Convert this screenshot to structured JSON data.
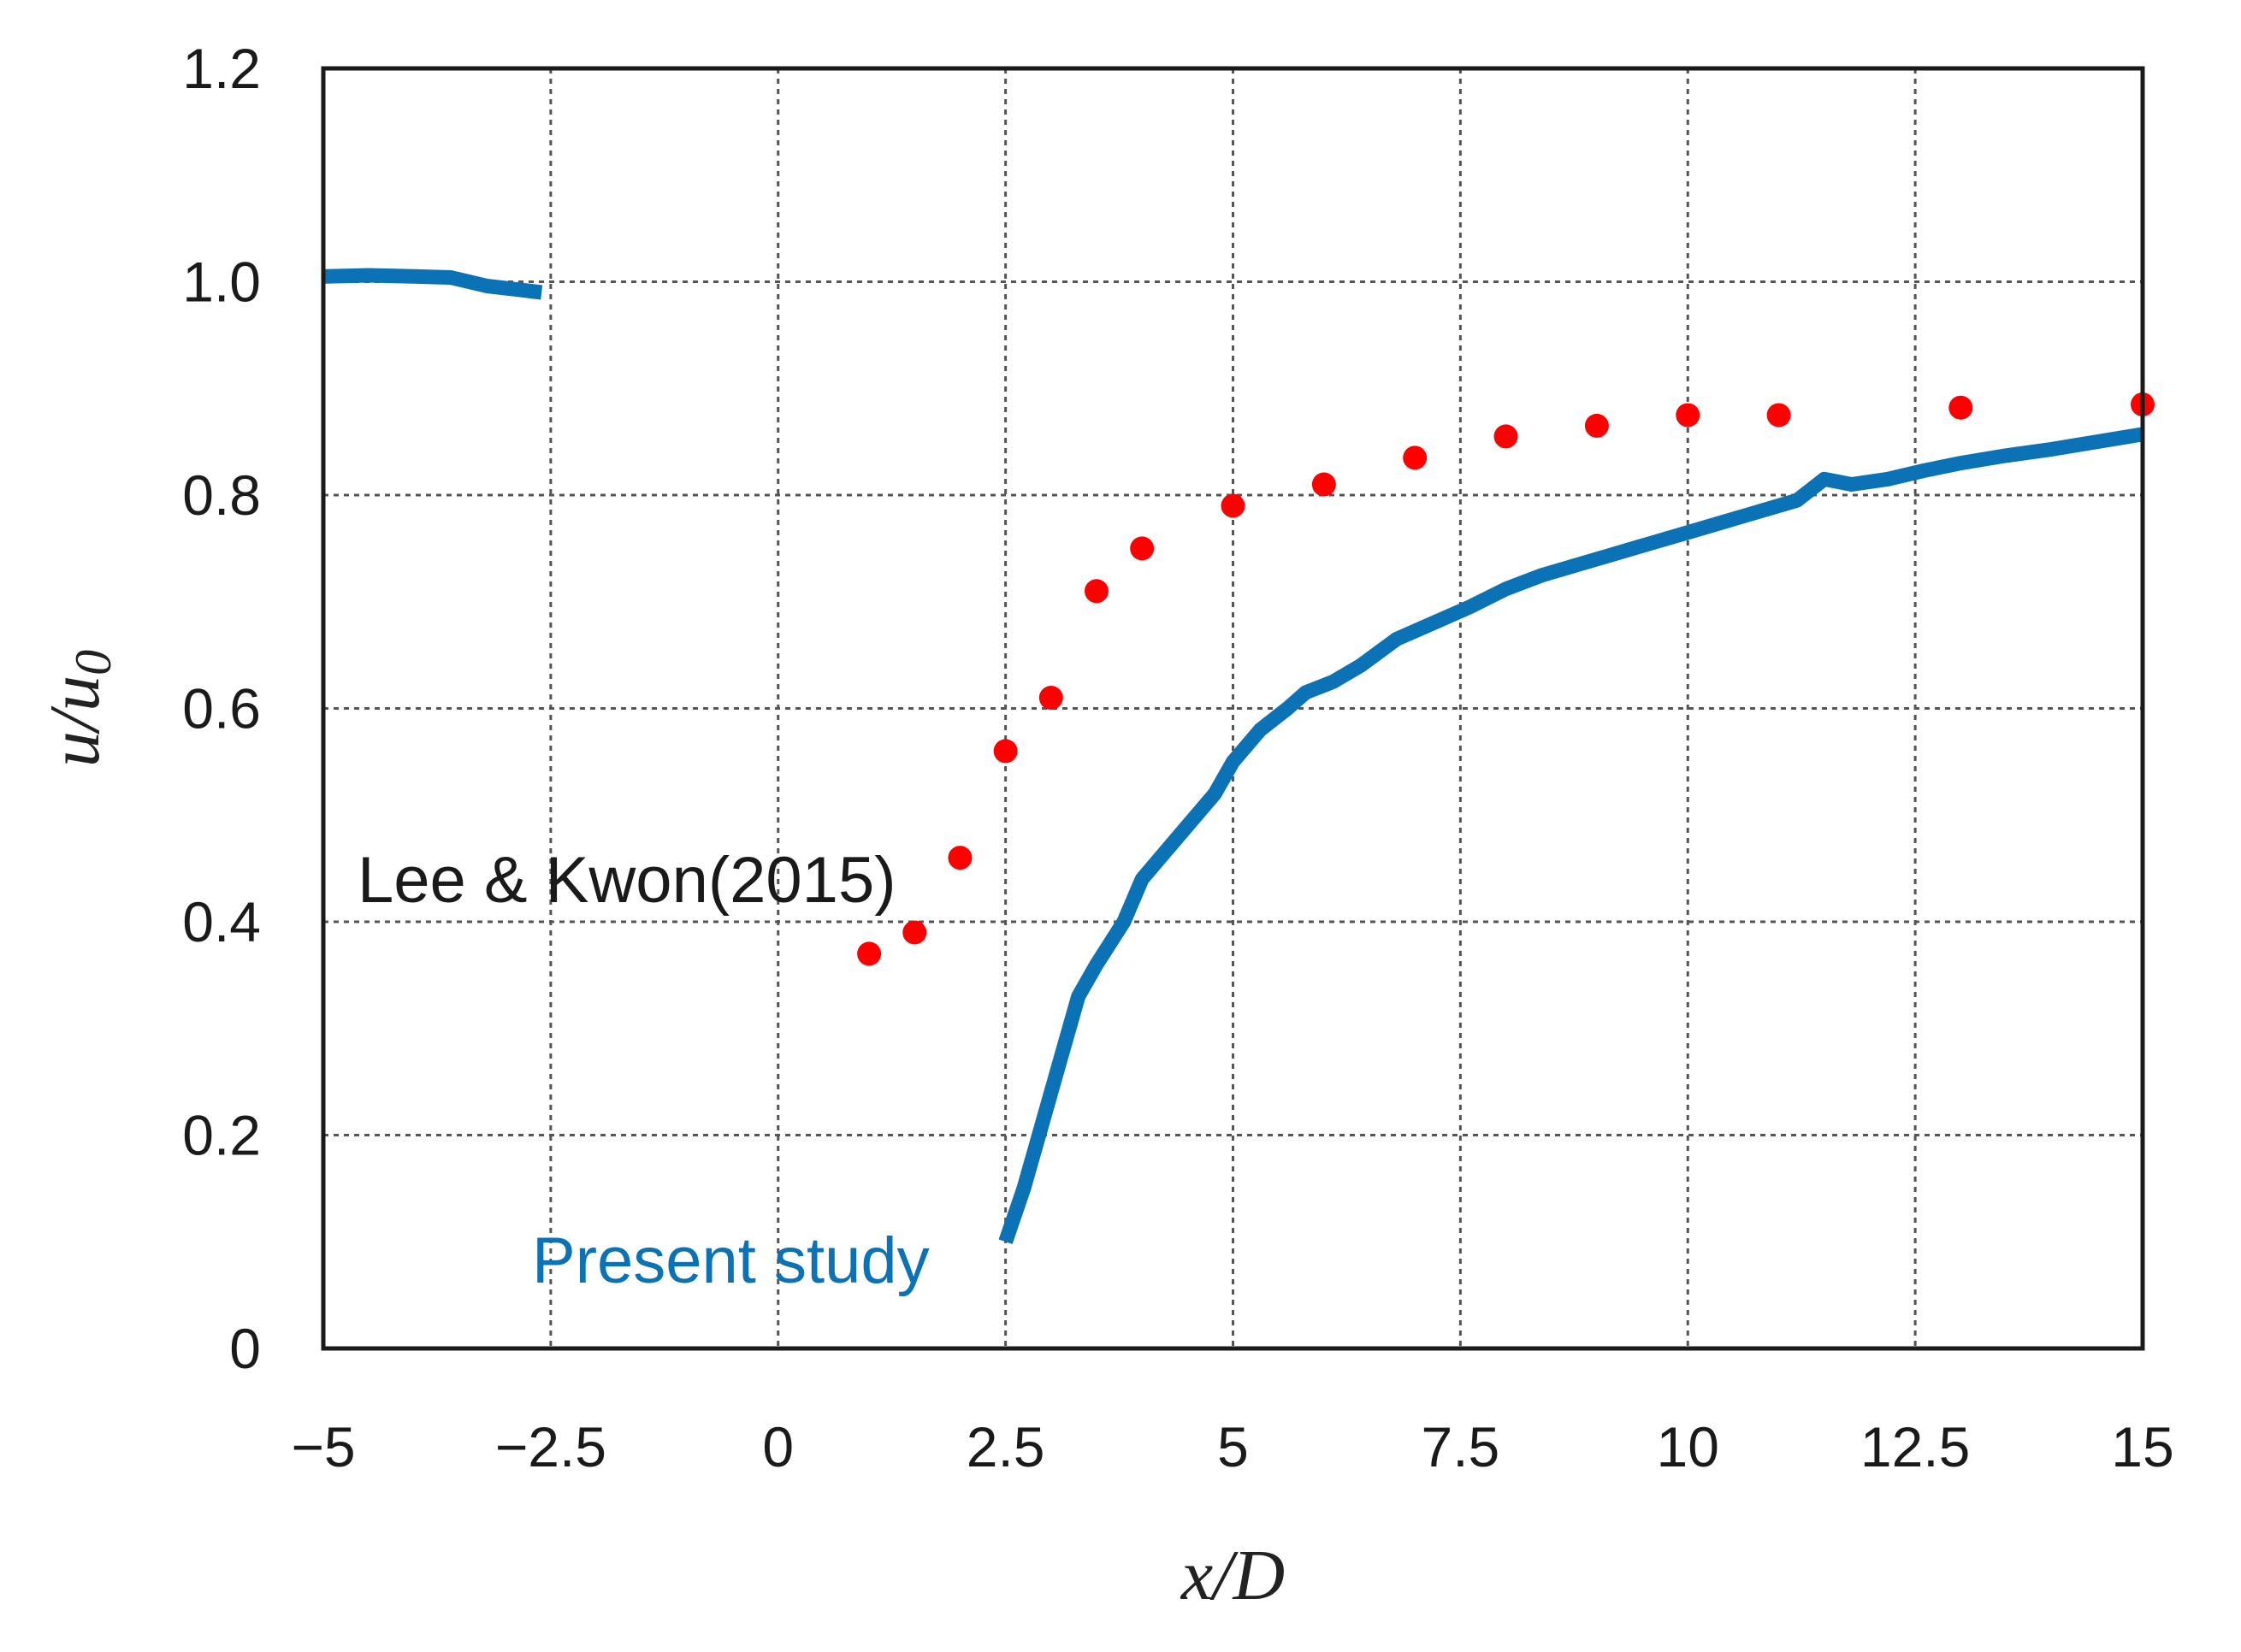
{
  "chart_data": {
    "type": "line",
    "title": "",
    "xlabel": "x/D",
    "ylabel": "u/u0",
    "ylabel_main": "u/u",
    "ylabel_sub": "0",
    "xlim": [
      -5,
      15
    ],
    "ylim": [
      0,
      1.2
    ],
    "grid": true,
    "x_ticks": [
      -5,
      -2.5,
      0,
      2.5,
      5,
      7.5,
      10,
      12.5,
      15
    ],
    "x_tick_labels": [
      "−5",
      "−2.5",
      "0",
      "2.5",
      "5",
      "7.5",
      "10",
      "12.5",
      "15"
    ],
    "y_ticks": [
      0,
      0.2,
      0.4,
      0.6,
      0.8,
      1.0,
      1.2
    ],
    "y_tick_labels": [
      "0",
      "0.2",
      "0.4",
      "0.6",
      "0.8",
      "1.0",
      "1.2"
    ],
    "series": [
      {
        "name": "Present study",
        "kind": "line",
        "color": "#0b72b5",
        "segments": [
          [
            [
              -5.0,
              1.005
            ],
            [
              -4.5,
              1.006
            ],
            [
              -4.0,
              1.005
            ],
            [
              -3.6,
              1.004
            ],
            [
              -3.4,
              1.0
            ],
            [
              -3.2,
              0.996
            ],
            [
              -2.9,
              0.993
            ],
            [
              -2.6,
              0.99
            ]
          ],
          [
            [
              2.5,
              0.1
            ],
            [
              2.7,
              0.15
            ],
            [
              2.9,
              0.21
            ],
            [
              3.1,
              0.27
            ],
            [
              3.3,
              0.33
            ],
            [
              3.5,
              0.36
            ],
            [
              3.8,
              0.4
            ],
            [
              4.0,
              0.44
            ],
            [
              4.2,
              0.46
            ],
            [
              4.5,
              0.49
            ],
            [
              4.8,
              0.52
            ],
            [
              5.0,
              0.55
            ],
            [
              5.3,
              0.58
            ],
            [
              5.6,
              0.6
            ],
            [
              5.8,
              0.615
            ],
            [
              6.1,
              0.625
            ],
            [
              6.4,
              0.64
            ],
            [
              6.8,
              0.665
            ],
            [
              7.2,
              0.68
            ],
            [
              7.6,
              0.695
            ],
            [
              8.0,
              0.712
            ],
            [
              8.4,
              0.725
            ],
            [
              8.8,
              0.735
            ],
            [
              9.2,
              0.745
            ],
            [
              9.6,
              0.755
            ],
            [
              10.0,
              0.765
            ],
            [
              10.4,
              0.775
            ],
            [
              10.8,
              0.785
            ],
            [
              11.2,
              0.795
            ],
            [
              11.5,
              0.815
            ],
            [
              11.8,
              0.81
            ],
            [
              12.2,
              0.815
            ],
            [
              12.6,
              0.823
            ],
            [
              13.0,
              0.83
            ],
            [
              13.5,
              0.837
            ],
            [
              14.0,
              0.843
            ],
            [
              14.5,
              0.85
            ],
            [
              15.0,
              0.857
            ]
          ]
        ]
      },
      {
        "name": "Lee & Kwon(2015)",
        "kind": "scatter",
        "color": "#ff0000",
        "x": [
          1.0,
          1.5,
          2.0,
          2.5,
          3.0,
          3.5,
          4.0,
          5.0,
          6.0,
          7.0,
          8.0,
          9.0,
          10.0,
          11.0,
          13.0,
          15.0
        ],
        "values": [
          0.37,
          0.39,
          0.46,
          0.56,
          0.61,
          0.71,
          0.75,
          0.79,
          0.81,
          0.835,
          0.855,
          0.865,
          0.875,
          0.875,
          0.882,
          0.885
        ]
      }
    ],
    "annotations": [
      {
        "text": "Lee & Kwon(2015)",
        "color": "#1a1a1a",
        "series": "Lee & Kwon(2015)"
      },
      {
        "text": "Present study",
        "color": "#0b72b5",
        "series": "Present study"
      }
    ]
  }
}
